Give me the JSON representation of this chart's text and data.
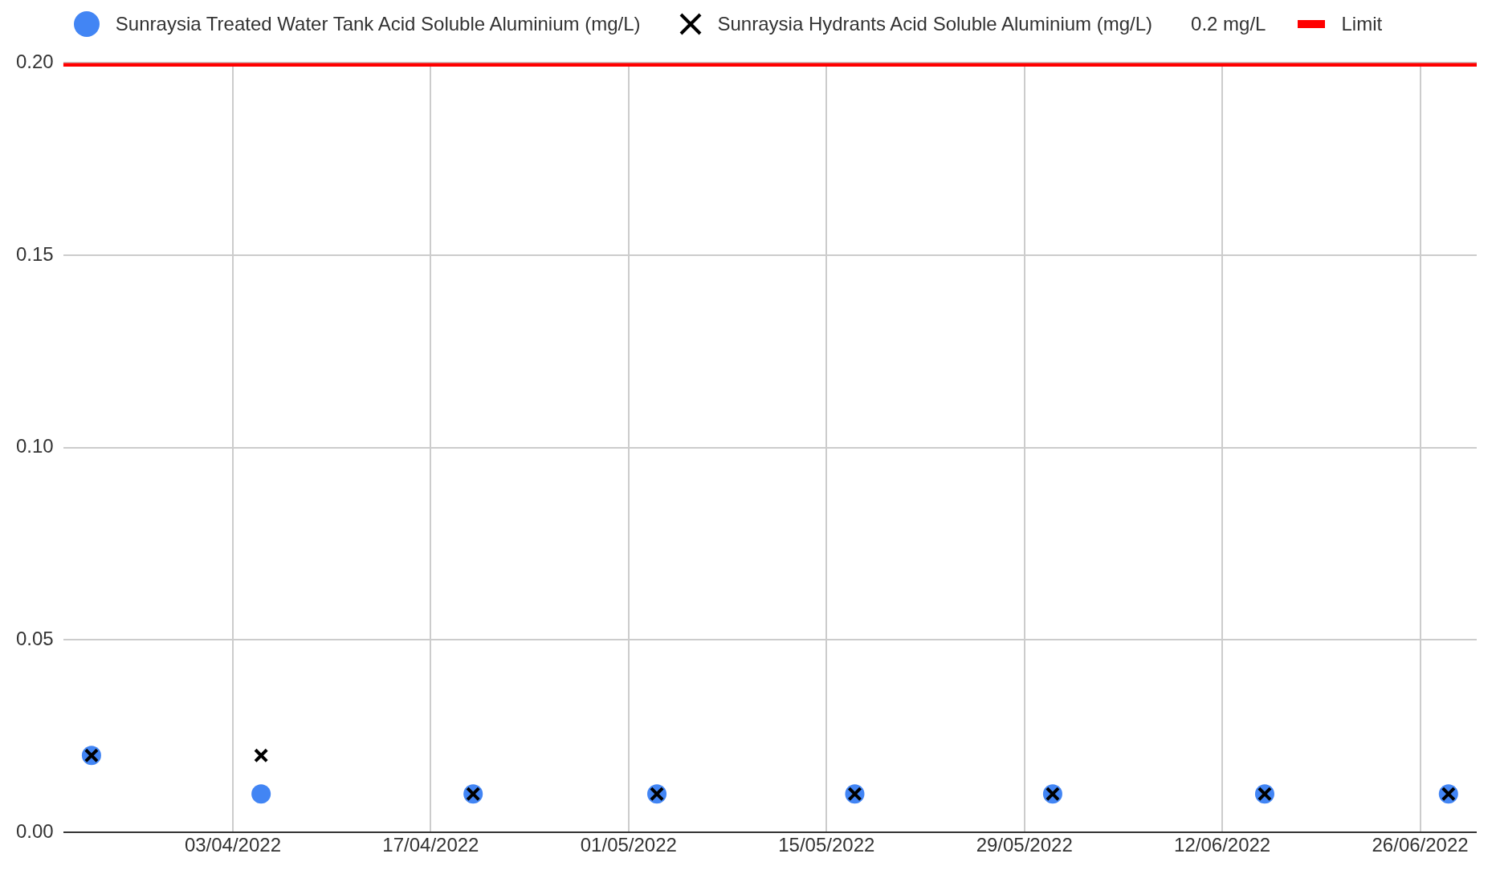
{
  "chart_data": {
    "type": "scatter",
    "legend": "top",
    "grid": true,
    "annotations": [
      "0.2 mg/L"
    ],
    "xlim": [
      "2022-03-22",
      "2022-06-30"
    ],
    "xticks": [
      {
        "value": "2022-04-03",
        "label": "03/04/2022"
      },
      {
        "value": "2022-04-17",
        "label": "17/04/2022"
      },
      {
        "value": "2022-05-01",
        "label": "01/05/2022"
      },
      {
        "value": "2022-05-15",
        "label": "15/05/2022"
      },
      {
        "value": "2022-05-29",
        "label": "29/05/2022"
      },
      {
        "value": "2022-06-12",
        "label": "12/06/2022"
      },
      {
        "value": "2022-06-26",
        "label": "26/06/2022"
      }
    ],
    "ylim": [
      0,
      0.2
    ],
    "yticks": [
      {
        "value": 0,
        "label": "0.00"
      },
      {
        "value": 0.05,
        "label": "0.05"
      },
      {
        "value": 0.1,
        "label": "0.10"
      },
      {
        "value": 0.15,
        "label": "0.15"
      },
      {
        "value": 0.2,
        "label": "0.20"
      }
    ],
    "x": [
      "2022-03-24",
      "2022-04-05",
      "2022-04-20",
      "2022-05-03",
      "2022-05-17",
      "2022-05-31",
      "2022-06-15",
      "2022-06-28"
    ],
    "series": [
      {
        "name": "Sunraysia Treated Water Tank Acid Soluble Aluminium (mg/L)",
        "color": "#4285f4",
        "marker": "circle",
        "values": [
          0.02,
          0.01,
          0.01,
          0.01,
          0.01,
          0.01,
          0.01,
          0.01
        ]
      },
      {
        "name": "Sunraysia Hydrants Acid Soluble Aluminium (mg/L)",
        "color": "#000000",
        "marker": "cross",
        "values": [
          0.02,
          0.02,
          0.01,
          0.01,
          0.01,
          0.01,
          0.01,
          0.01
        ]
      },
      {
        "name": "Limit",
        "type": "line",
        "color": "#ff0000",
        "x": [
          "2022-03-22",
          "2022-06-30"
        ],
        "values": [
          0.2,
          0.2
        ]
      }
    ]
  }
}
